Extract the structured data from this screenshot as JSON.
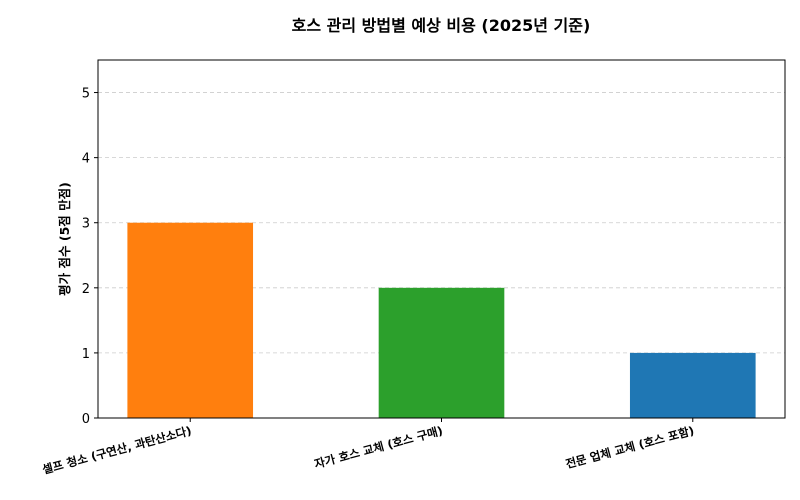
{
  "chart_data": {
    "type": "bar",
    "title": "호스 관리 방법별 예상 비용 (2025년 기준)",
    "xlabel": "",
    "ylabel": "평가 점수 (5점 만점)",
    "categories": [
      "셀프 청소 (구연산, 과탄산소다)",
      "자가 호스 교체 (호스 구매)",
      "전문 업체 교체 (호스 포함)"
    ],
    "values": [
      3,
      2,
      1
    ],
    "colors": [
      "#ff7f0e",
      "#2ca02c",
      "#1f77b4"
    ],
    "ylim": [
      0,
      5.5
    ],
    "yticks": [
      0,
      1,
      2,
      3,
      4,
      5
    ],
    "grid": "y-dashed",
    "legend": "none"
  }
}
